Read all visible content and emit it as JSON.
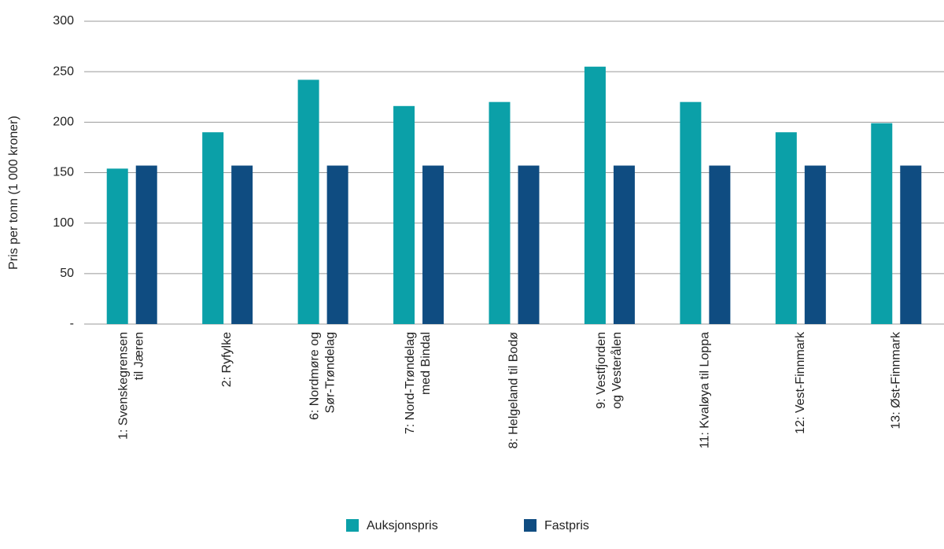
{
  "chart_data": {
    "type": "bar",
    "y_label": "Pris per tonn (1 000 kroner)",
    "categories": [
      "1: Svenskegrensen\ntil Jæren",
      "2: Ryfylke",
      "6: Nordmøre og\nSør-Trøndelag",
      "7: Nord-Trøndelag\nmed Bindal",
      "8: Helgeland til Bodø",
      "9: Vestfjorden\nog Vesterålen",
      "11: Kvaløya til Loppa",
      "12: Vest-Finnmark",
      "13: Øst-Finnmark"
    ],
    "series": [
      {
        "name": "Auksjonspris",
        "color": "#0ba0a8",
        "values": [
          154,
          190,
          242,
          216,
          220,
          255,
          220,
          190,
          199
        ]
      },
      {
        "name": "Fastpris",
        "color": "#0f4c81",
        "values": [
          157,
          157,
          157,
          157,
          157,
          157,
          157,
          157,
          157
        ]
      }
    ],
    "ylim": [
      0,
      300
    ],
    "yticks": [
      {
        "value": 0,
        "label": "-"
      },
      50,
      100,
      150,
      200,
      250,
      300
    ],
    "grid": true
  }
}
